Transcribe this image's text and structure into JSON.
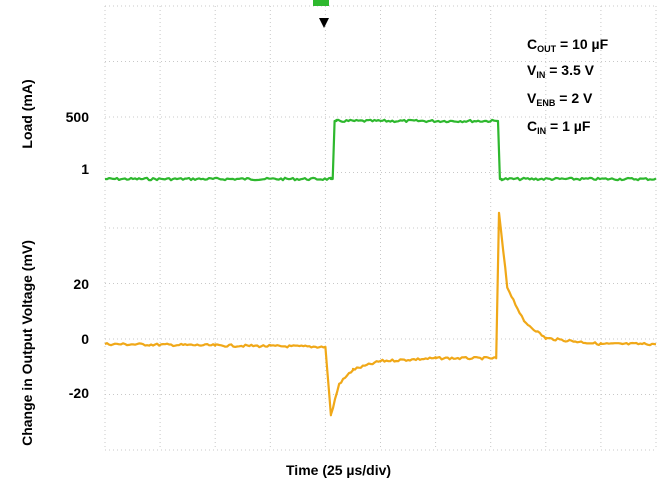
{
  "chart_data": {
    "type": "line",
    "title": "",
    "xlabel": "Time (25 µs/div)",
    "upper_axis": {
      "ylabel": "Load (mA)",
      "ticks": [
        "500",
        "1"
      ]
    },
    "lower_axis": {
      "ylabel": "Change in Output Voltage (mV)",
      "ticks": [
        "20",
        "0",
        "-20"
      ],
      "ylim": [
        -40,
        40
      ]
    },
    "x_divisions": 10,
    "x_range_div": [
      0,
      10
    ],
    "series": [
      {
        "name": "Load",
        "color": "#2eb82e",
        "x": [
          0,
          4.1,
          4.2,
          7.1,
          7.2,
          10
        ],
        "values": [
          1,
          1,
          500,
          500,
          1,
          1
        ]
      },
      {
        "name": "Change in Output Voltage",
        "color": "#f0a818",
        "x": [
          0,
          2,
          4.0,
          4.1,
          4.25,
          4.5,
          5,
          6,
          7.1,
          7.15,
          7.3,
          7.6,
          8,
          9,
          10
        ],
        "values": [
          0,
          -0.5,
          -1,
          -25,
          -14,
          -9,
          -6,
          -5,
          -5,
          46,
          20,
          8,
          2,
          0,
          0
        ]
      }
    ],
    "annotations": [
      {
        "main": "C",
        "sub": "OUT",
        "rest": " = 10 µF"
      },
      {
        "main": "V",
        "sub": "IN",
        "rest": " = 3.5 V"
      },
      {
        "main": "V",
        "sub": "ENB",
        "rest": " = 2 V"
      },
      {
        "main": "C",
        "sub": "IN",
        "rest": " = 1 µF"
      }
    ],
    "grid": true
  }
}
